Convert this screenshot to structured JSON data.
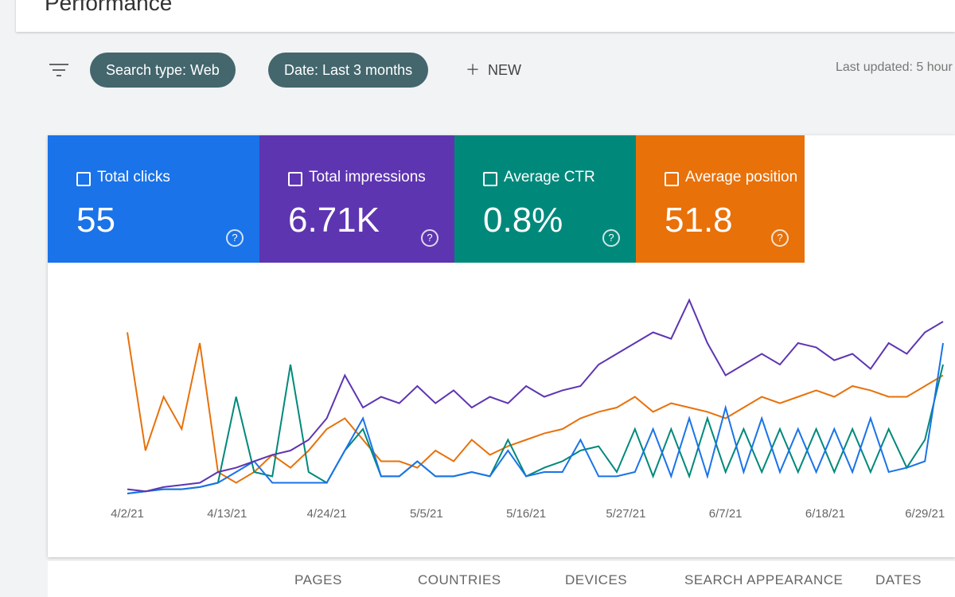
{
  "header": {
    "title": "Performance"
  },
  "filters": {
    "chips": [
      "Search type: Web",
      "Date: Last 3 months"
    ],
    "new_button": "NEW",
    "last_updated": "Last updated: 5 hour"
  },
  "metrics": [
    {
      "label": "Total clicks",
      "value": "55",
      "color": "#1a73e8",
      "series": [
        0,
        1,
        2,
        2,
        3,
        5,
        10,
        15,
        5,
        5,
        5,
        5,
        20,
        35,
        8,
        8,
        15,
        8,
        8,
        10,
        8,
        20,
        8,
        10,
        10,
        25,
        8,
        8,
        10,
        30,
        8,
        35,
        8,
        40,
        10,
        35,
        10,
        30,
        10,
        30,
        10,
        35,
        10,
        12,
        15,
        70
      ]
    },
    {
      "label": "Total impressions",
      "value": "6.71K",
      "color": "#5e35b1",
      "series": [
        2,
        1,
        3,
        4,
        5,
        10,
        12,
        15,
        18,
        20,
        25,
        35,
        55,
        40,
        45,
        42,
        50,
        42,
        48,
        40,
        45,
        42,
        50,
        45,
        48,
        50,
        60,
        65,
        70,
        75,
        72,
        90,
        70,
        55,
        60,
        65,
        60,
        70,
        68,
        62,
        65,
        58,
        70,
        65,
        75,
        80
      ]
    },
    {
      "label": "Average CTR",
      "value": "0.8%",
      "color": "#00897b",
      "series": [
        0,
        1,
        2,
        2,
        3,
        5,
        45,
        10,
        8,
        60,
        10,
        5,
        20,
        30,
        8,
        8,
        15,
        8,
        8,
        10,
        8,
        25,
        8,
        12,
        15,
        20,
        22,
        10,
        30,
        8,
        30,
        8,
        35,
        10,
        30,
        10,
        30,
        10,
        30,
        10,
        30,
        10,
        30,
        12,
        25,
        60
      ]
    },
    {
      "label": "Average position",
      "value": "51.8",
      "color": "#e8710a",
      "series": [
        75,
        20,
        45,
        30,
        70,
        10,
        5,
        10,
        18,
        12,
        20,
        30,
        35,
        25,
        15,
        15,
        12,
        20,
        15,
        25,
        18,
        22,
        25,
        28,
        30,
        35,
        38,
        40,
        45,
        38,
        42,
        40,
        38,
        35,
        40,
        45,
        42,
        45,
        48,
        45,
        50,
        48,
        45,
        45,
        50,
        55
      ]
    }
  ],
  "chart": {
    "x_labels": [
      "4/2/21",
      "4/13/21",
      "4/24/21",
      "5/5/21",
      "5/16/21",
      "5/27/21",
      "6/7/21",
      "6/18/21",
      "6/29/21"
    ]
  },
  "tabs": [
    "PAGES",
    "COUNTRIES",
    "DEVICES",
    "SEARCH APPEARANCE",
    "DATES"
  ]
}
